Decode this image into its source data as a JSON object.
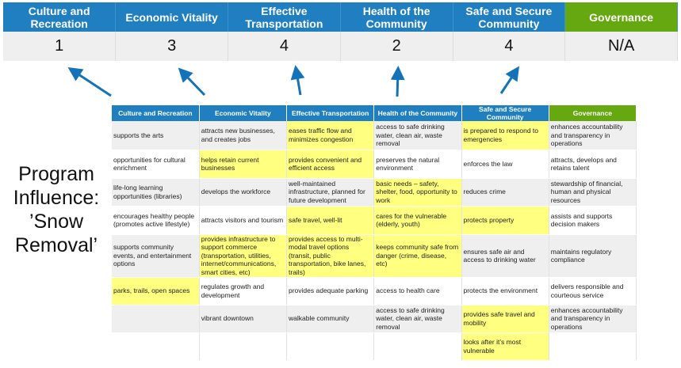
{
  "summary": {
    "headers": [
      {
        "label": "Culture and Recreation",
        "color": "#1f7fc1"
      },
      {
        "label": "Economic Vitality",
        "color": "#1f7fc1"
      },
      {
        "label": "Effective Transportation",
        "color": "#1f7fc1"
      },
      {
        "label": "Health of the Community",
        "color": "#1f7fc1"
      },
      {
        "label": "Safe and Secure Community",
        "color": "#1f7fc1"
      },
      {
        "label": "Governance",
        "color": "#66a80f"
      }
    ],
    "scores": [
      "1",
      "3",
      "4",
      "2",
      "4",
      "N/A"
    ]
  },
  "influence_label": "Program Influence: ’Snow Removal’",
  "highlight_color": "#ffff80",
  "arrow_color": "#1472b8",
  "matrix": {
    "headers": [
      {
        "label": "Culture and Recreation",
        "color": "#1f7fc1"
      },
      {
        "label": "Economic Vitality",
        "color": "#1f7fc1"
      },
      {
        "label": "Effective Transportation",
        "color": "#1f7fc1"
      },
      {
        "label": "Health of the Community",
        "color": "#1f7fc1"
      },
      {
        "label": "Safe and Secure Community",
        "color": "#1f7fc1"
      },
      {
        "label": "Governance",
        "color": "#66a80f"
      }
    ],
    "rows": [
      [
        {
          "text": "supports the arts",
          "hl": false
        },
        {
          "text": "attracts new businesses, and creates jobs",
          "hl": false
        },
        {
          "text": "eases traffic flow and minimizes congestion",
          "hl": true
        },
        {
          "text": "access to safe drinking water, clean air, waste removal",
          "hl": false
        },
        {
          "text": "is prepared to respond to emergencies",
          "hl": true
        },
        {
          "text": "enhances accountability and transparency in operations",
          "hl": false
        }
      ],
      [
        {
          "text": "opportunities for cultural enrichment",
          "hl": false
        },
        {
          "text": "helps retain current businesses",
          "hl": true
        },
        {
          "text": "provides convenient and efficient access",
          "hl": true
        },
        {
          "text": "preserves the natural environment",
          "hl": false
        },
        {
          "text": "enforces the law",
          "hl": false
        },
        {
          "text": "attracts, develops and retains talent",
          "hl": false
        }
      ],
      [
        {
          "text": "life-long learning opportunities (libraries)",
          "hl": false
        },
        {
          "text": "develops the workforce",
          "hl": false
        },
        {
          "text": "well-maintained infrastructure, planned for future development",
          "hl": false
        },
        {
          "text": "basic needs – safety, shelter, food, opportunity to work",
          "hl": true
        },
        {
          "text": "reduces crime",
          "hl": false
        },
        {
          "text": "stewardship of financial, human and physical resources",
          "hl": false
        }
      ],
      [
        {
          "text": "encourages healthy people (promotes active lifestyle)",
          "hl": false
        },
        {
          "text": "attracts visitors and tourism",
          "hl": false
        },
        {
          "text": "safe travel, well-lit",
          "hl": true
        },
        {
          "text": "cares for the vulnerable (elderly, youth)",
          "hl": true
        },
        {
          "text": "protects property",
          "hl": true
        },
        {
          "text": "assists and supports decision makers",
          "hl": false
        }
      ],
      [
        {
          "text": "supports community events, and entertainment options",
          "hl": false
        },
        {
          "text": "provides infrastructure to support commerce (transportation, utilities, internet/communications, smart cities, etc)",
          "hl": true
        },
        {
          "text": "provides access to multi-modal travel options (transit, public transportation, bike lanes, trails)",
          "hl": true
        },
        {
          "text": "keeps community safe from danger (crime, disease, etc)",
          "hl": true
        },
        {
          "text": "ensures safe air and access to drinking water",
          "hl": false
        },
        {
          "text": "maintains regulatory compliance",
          "hl": false
        }
      ],
      [
        {
          "text": "parks, trails, open spaces",
          "hl": true
        },
        {
          "text": "regulates growth and development",
          "hl": false
        },
        {
          "text": "provides adequate parking",
          "hl": false
        },
        {
          "text": "access to health care",
          "hl": false
        },
        {
          "text": "protects the environment",
          "hl": false
        },
        {
          "text": "delivers responsible and courteous service",
          "hl": false
        }
      ],
      [
        {
          "text": "",
          "hl": false
        },
        {
          "text": "vibrant downtown",
          "hl": false
        },
        {
          "text": "walkable community",
          "hl": false
        },
        {
          "text": "access to safe drinking water, clean air, waste removal",
          "hl": false
        },
        {
          "text": "provides safe travel and mobility",
          "hl": true
        },
        {
          "text": "enhances accountability and transparency in operations",
          "hl": false
        }
      ],
      [
        {
          "text": "",
          "hl": false
        },
        {
          "text": "",
          "hl": false
        },
        {
          "text": "",
          "hl": false
        },
        {
          "text": "",
          "hl": false
        },
        {
          "text": "looks after it’s most vulnerable",
          "hl": true
        },
        {
          "text": "",
          "hl": false
        }
      ]
    ]
  }
}
